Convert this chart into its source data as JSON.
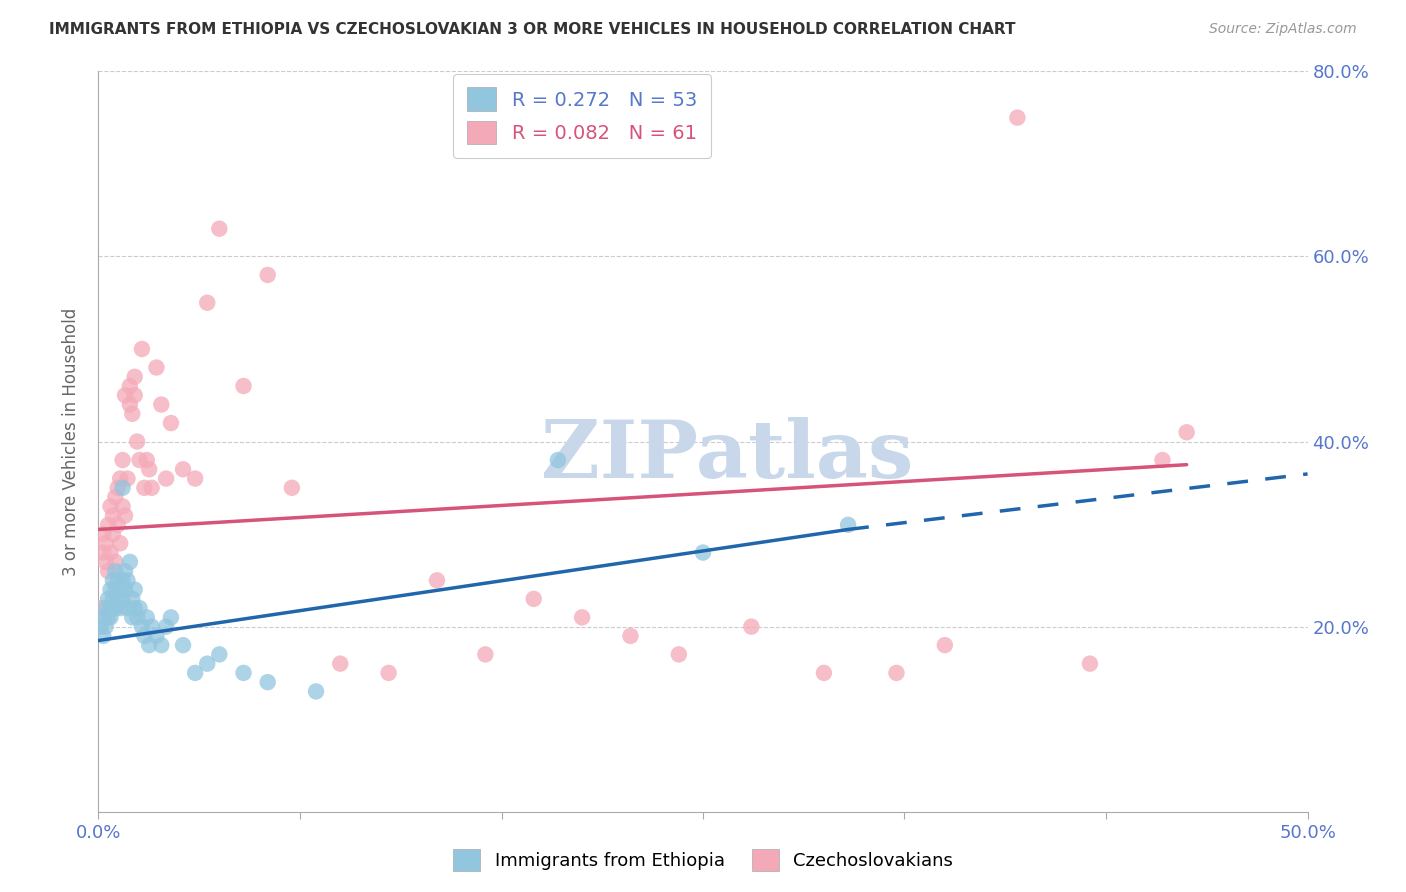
{
  "title": "IMMIGRANTS FROM ETHIOPIA VS CZECHOSLOVAKIAN 3 OR MORE VEHICLES IN HOUSEHOLD CORRELATION CHART",
  "source_text": "Source: ZipAtlas.com",
  "ylabel": "3 or more Vehicles in Household",
  "xlabel_blue": "Immigrants from Ethiopia",
  "xlabel_pink": "Czechoslovakians",
  "legend_blue_r": "R = 0.272",
  "legend_blue_n": "N = 53",
  "legend_pink_r": "R = 0.082",
  "legend_pink_n": "N = 61",
  "xmin": 0.0,
  "xmax": 0.5,
  "ymin": 0.0,
  "ymax": 0.8,
  "yticks": [
    0.2,
    0.4,
    0.6,
    0.8
  ],
  "xticks_pos": [
    0.0,
    0.0833,
    0.1667,
    0.25,
    0.3333,
    0.4167,
    0.5
  ],
  "xtick_labels_show": [
    "0.0%",
    "",
    "",
    "",
    "",
    "",
    "50.0%"
  ],
  "blue_color": "#92c5de",
  "pink_color": "#f4a9b8",
  "trend_blue": "#2166ac",
  "trend_pink": "#d6537a",
  "axis_label_color": "#5577cc",
  "title_color": "#333333",
  "watermark_color": "#c8d8ea",
  "blue_scatter_x": [
    0.001,
    0.002,
    0.002,
    0.003,
    0.003,
    0.004,
    0.004,
    0.005,
    0.005,
    0.005,
    0.006,
    0.006,
    0.006,
    0.007,
    0.007,
    0.007,
    0.008,
    0.008,
    0.009,
    0.009,
    0.01,
    0.01,
    0.01,
    0.011,
    0.011,
    0.012,
    0.012,
    0.013,
    0.014,
    0.014,
    0.015,
    0.015,
    0.016,
    0.017,
    0.018,
    0.019,
    0.02,
    0.021,
    0.022,
    0.024,
    0.026,
    0.028,
    0.03,
    0.035,
    0.04,
    0.045,
    0.05,
    0.06,
    0.07,
    0.09,
    0.19,
    0.25,
    0.31
  ],
  "blue_scatter_y": [
    0.2,
    0.19,
    0.21,
    0.22,
    0.2,
    0.21,
    0.23,
    0.22,
    0.24,
    0.21,
    0.23,
    0.25,
    0.22,
    0.24,
    0.26,
    0.22,
    0.25,
    0.23,
    0.24,
    0.22,
    0.23,
    0.35,
    0.25,
    0.26,
    0.24,
    0.22,
    0.25,
    0.27,
    0.23,
    0.21,
    0.22,
    0.24,
    0.21,
    0.22,
    0.2,
    0.19,
    0.21,
    0.18,
    0.2,
    0.19,
    0.18,
    0.2,
    0.21,
    0.18,
    0.15,
    0.16,
    0.17,
    0.15,
    0.14,
    0.13,
    0.38,
    0.28,
    0.31
  ],
  "pink_scatter_x": [
    0.001,
    0.002,
    0.002,
    0.003,
    0.003,
    0.004,
    0.004,
    0.005,
    0.005,
    0.006,
    0.006,
    0.007,
    0.007,
    0.008,
    0.008,
    0.009,
    0.009,
    0.01,
    0.01,
    0.011,
    0.011,
    0.012,
    0.013,
    0.013,
    0.014,
    0.015,
    0.015,
    0.016,
    0.017,
    0.018,
    0.019,
    0.02,
    0.021,
    0.022,
    0.024,
    0.026,
    0.028,
    0.03,
    0.035,
    0.04,
    0.045,
    0.05,
    0.06,
    0.07,
    0.08,
    0.1,
    0.12,
    0.14,
    0.16,
    0.18,
    0.2,
    0.22,
    0.24,
    0.27,
    0.3,
    0.33,
    0.35,
    0.38,
    0.41,
    0.44,
    0.45
  ],
  "pink_scatter_y": [
    0.22,
    0.28,
    0.3,
    0.27,
    0.29,
    0.31,
    0.26,
    0.33,
    0.28,
    0.3,
    0.32,
    0.34,
    0.27,
    0.35,
    0.31,
    0.36,
    0.29,
    0.38,
    0.33,
    0.45,
    0.32,
    0.36,
    0.46,
    0.44,
    0.43,
    0.47,
    0.45,
    0.4,
    0.38,
    0.5,
    0.35,
    0.38,
    0.37,
    0.35,
    0.48,
    0.44,
    0.36,
    0.42,
    0.37,
    0.36,
    0.55,
    0.63,
    0.46,
    0.58,
    0.35,
    0.16,
    0.15,
    0.25,
    0.17,
    0.23,
    0.21,
    0.19,
    0.17,
    0.2,
    0.15,
    0.15,
    0.18,
    0.75,
    0.16,
    0.38,
    0.41
  ],
  "blue_trend_x_start": 0.0,
  "blue_trend_x_solid_end": 0.31,
  "blue_trend_x_dash_end": 0.5,
  "blue_trend_y_start": 0.185,
  "blue_trend_y_solid_end": 0.305,
  "blue_trend_y_dash_end": 0.365,
  "pink_trend_x_start": 0.0,
  "pink_trend_x_end": 0.45,
  "pink_trend_y_start": 0.305,
  "pink_trend_y_end": 0.375
}
